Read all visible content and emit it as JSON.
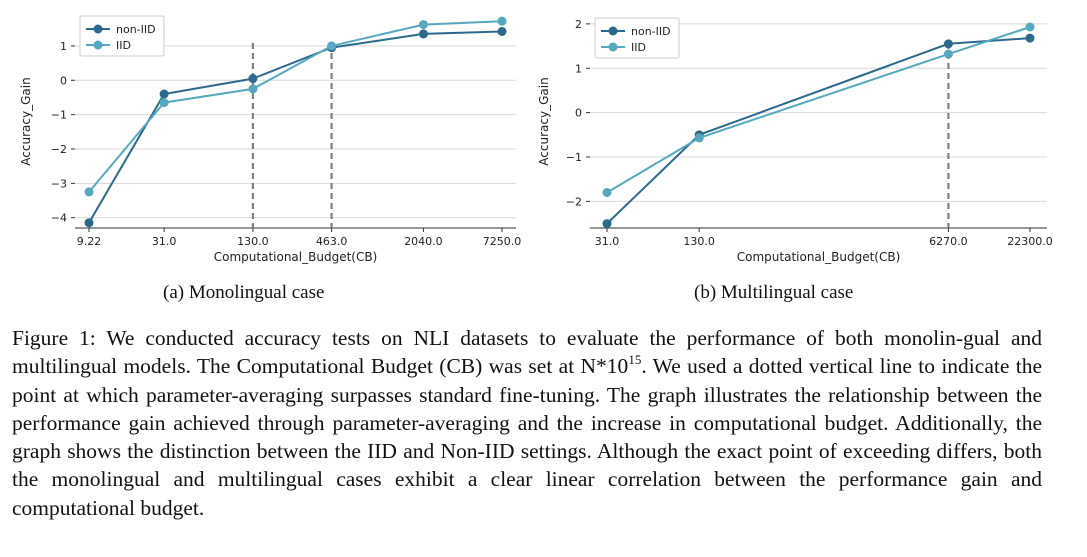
{
  "figure": {
    "caption_a": "(a) Monolingual case",
    "caption_b": "(b) Multilingual case",
    "caption_text_1": "Figure 1: We conducted accuracy tests on NLI datasets to evaluate the performance of both monolin-gual and multilingual models. The Computational Budget (CB) was set at N*10",
    "caption_sup": "15",
    "caption_text_2": ". We used a dotted vertical line to indicate the point at which parameter-averaging surpasses standard fine-tuning. The graph illustrates the relationship between the performance gain achieved through parameter-averaging and the increase in computational budget. Additionally, the graph shows the distinction between the IID and Non-IID settings. Although the exact point of exceeding differs, both the monolingual and multilingual cases exhibit a clear linear correlation between the performance gain and computational budget."
  },
  "colors": {
    "non_iid": "#2b6a8c",
    "iid": "#56a8c0",
    "dashed": "#808080",
    "grid": "#d9d9d9"
  },
  "chart_data": [
    {
      "type": "line",
      "xlabel": "Computational_Budget(CB)",
      "ylabel": "Accuracy_Gain",
      "categories": [
        "9.22",
        "31.0",
        "130.0",
        "463.0",
        "2040.0",
        "7250.0"
      ],
      "x_scale": "log",
      "x": [
        9.22,
        31.0,
        130.0,
        463.0,
        2040.0,
        7250.0
      ],
      "ylim": [
        -4.3,
        1.9
      ],
      "yticks": [
        1,
        0,
        -1,
        -2,
        -3,
        -4
      ],
      "ytick_labels": [
        "1",
        "0",
        "−1",
        "−2",
        "−3",
        "−4"
      ],
      "grid": "horizontal",
      "legend": "top-left",
      "vlines": [
        130.0,
        463.0
      ],
      "series": [
        {
          "name": "non-IID",
          "values": [
            -4.15,
            -0.4,
            0.05,
            0.95,
            1.35,
            1.42
          ]
        },
        {
          "name": "IID",
          "values": [
            -3.25,
            -0.65,
            -0.25,
            1.0,
            1.62,
            1.72
          ]
        }
      ]
    },
    {
      "type": "line",
      "xlabel": "Computational_Budget(CB)",
      "ylabel": "Accuracy_Gain",
      "categories": [
        "31.0",
        "130.0",
        "6270.0",
        "22300.0"
      ],
      "x_scale": "log",
      "x": [
        31.0,
        130.0,
        6270.0,
        22300.0
      ],
      "ylim": [
        -2.6,
        2.2
      ],
      "yticks": [
        2,
        1,
        0,
        -1,
        -2
      ],
      "ytick_labels": [
        "2",
        "1",
        "0",
        "−1",
        "−2"
      ],
      "grid": "horizontal",
      "legend": "top-left",
      "vlines": [
        6270.0
      ],
      "series": [
        {
          "name": "non-IID",
          "values": [
            -2.5,
            -0.5,
            1.55,
            1.68
          ]
        },
        {
          "name": "IID",
          "values": [
            -1.8,
            -0.57,
            1.32,
            1.93
          ]
        }
      ]
    }
  ]
}
